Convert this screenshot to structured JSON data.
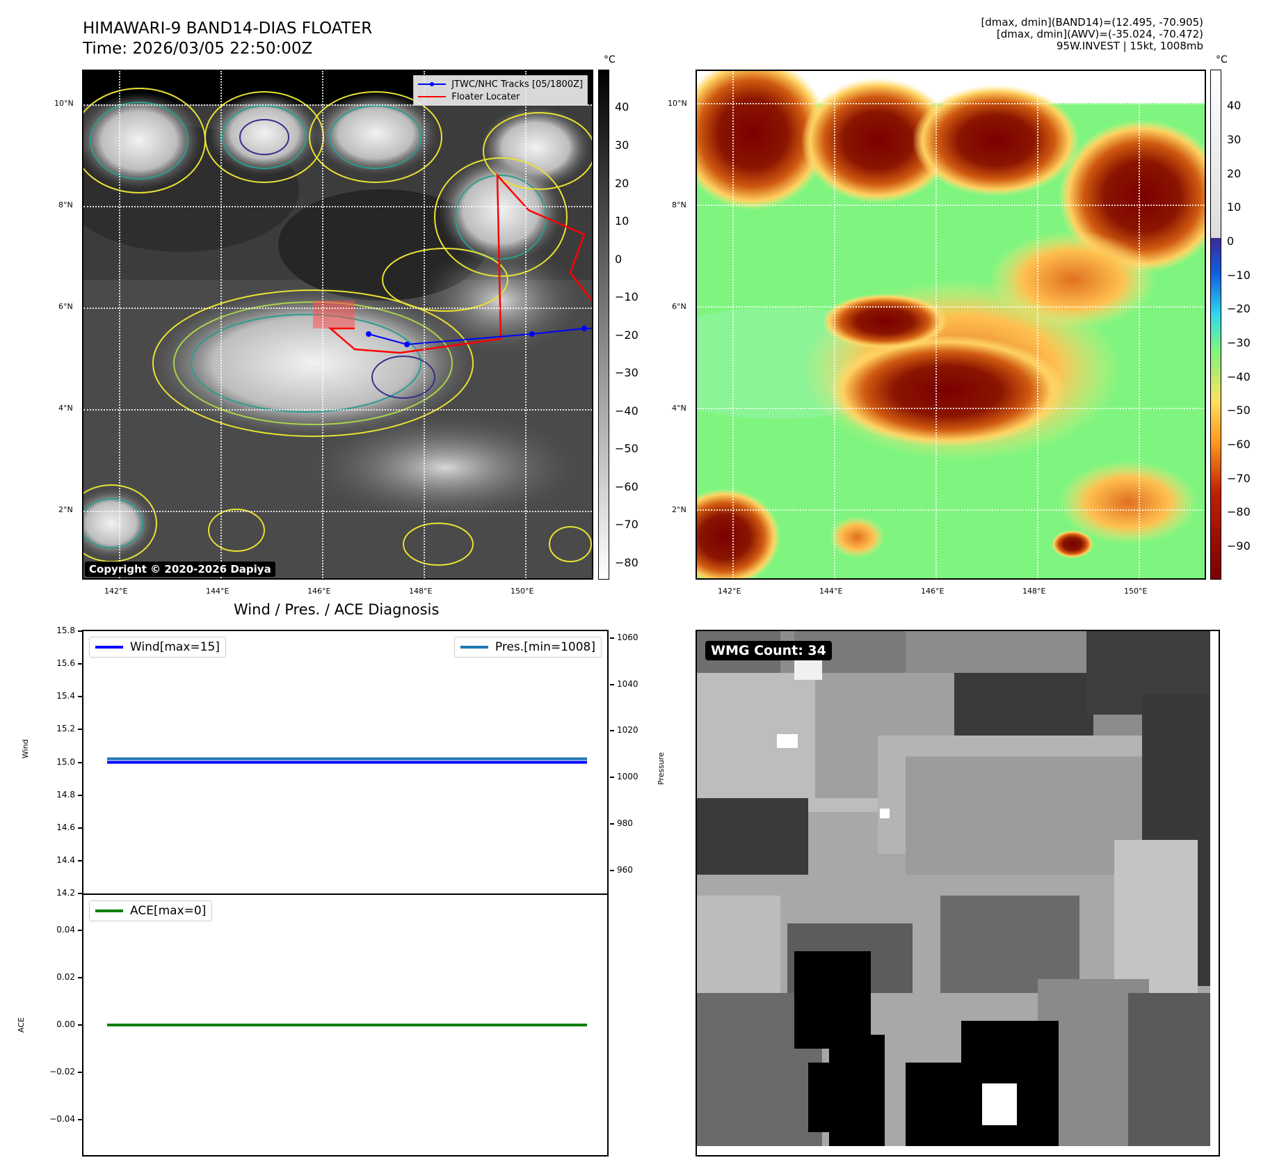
{
  "header": {
    "title_line1": "HIMAWARI-9 BAND14-DIAS FLOATER",
    "title_line2": "Time: 2026/03/05 22:50:00Z",
    "info_line1": "[dmax, dmin](BAND14)=(12.495, -70.905)",
    "info_line2": "[dmax, dmin](AWV)=(-35.024, -70.472)",
    "info_line3": "95W.INVEST | 15kt, 1008mb"
  },
  "map": {
    "lon_ticks": [
      "142°E",
      "144°E",
      "146°E",
      "148°E",
      "150°E"
    ],
    "lat_ticks": [
      "10°N",
      "8°N",
      "6°N",
      "4°N",
      "2°N"
    ],
    "legend_track": "JTWC/NHC Tracks [05/1800Z]",
    "legend_floater": "Floater Locater",
    "copyright": "Copyright © 2020-2026 Dapiya",
    "track_color": "#0000ff",
    "floater_color": "#ff0000"
  },
  "colorbar_left": {
    "unit": "°C",
    "ticks": [
      "40",
      "30",
      "20",
      "10",
      "0",
      "−10",
      "−20",
      "−30",
      "−40",
      "−50",
      "−60",
      "−70",
      "−80"
    ]
  },
  "colorbar_right": {
    "unit": "°C",
    "ticks": [
      "40",
      "30",
      "20",
      "10",
      "0",
      "−10",
      "−20",
      "−30",
      "−40",
      "−50",
      "−60",
      "−70",
      "−80",
      "−90"
    ]
  },
  "diagnosis": {
    "title": "Wind / Pres. / ACE Diagnosis",
    "wind_label": "Wind",
    "pressure_label": "Pressure",
    "ace_label": "ACE",
    "legend_wind": "Wind[max=15]",
    "legend_pres": "Pres.[min=1008]",
    "legend_ace": "ACE[max=0]",
    "wind_color": "#0000ff",
    "pres_color": "#1f77b4",
    "ace_color": "#008000"
  },
  "wmg": {
    "label": "WMG Count: 34"
  },
  "chart_data": [
    {
      "type": "line",
      "title": "Wind / Pres. / ACE Diagnosis",
      "ylabel": "Wind",
      "ylim": [
        14.2,
        15.8
      ],
      "yticks": [
        "15.8",
        "15.6",
        "15.4",
        "15.2",
        "15.0",
        "14.8",
        "14.6",
        "14.4",
        "14.2"
      ],
      "series": [
        {
          "name": "Wind[max=15]",
          "values": [
            15,
            15
          ]
        }
      ]
    },
    {
      "type": "line",
      "ylabel": "Pressure",
      "ylim": [
        950,
        1063
      ],
      "yticks": [
        "1060",
        "1040",
        "1020",
        "1000",
        "980",
        "960"
      ],
      "series": [
        {
          "name": "Pres.[min=1008]",
          "values": [
            1008,
            1008
          ]
        }
      ]
    },
    {
      "type": "line",
      "ylabel": "ACE",
      "ylim": [
        -0.055,
        0.055
      ],
      "yticks": [
        "0.04",
        "0.02",
        "0.00",
        "−0.02",
        "−0.04"
      ],
      "series": [
        {
          "name": "ACE[max=0]",
          "values": [
            0,
            0
          ]
        }
      ]
    }
  ]
}
